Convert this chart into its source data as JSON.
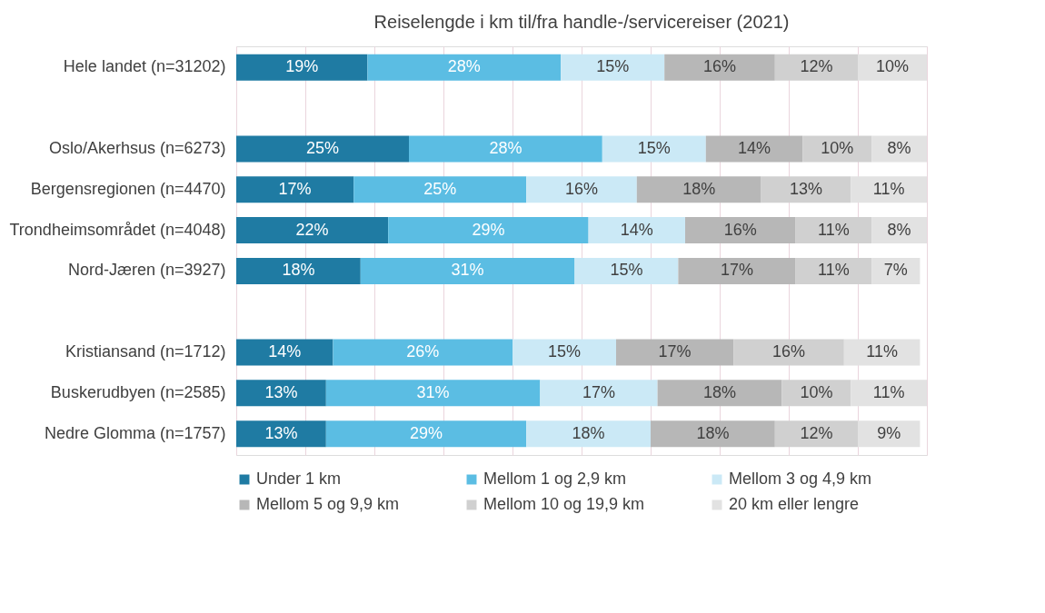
{
  "chart_data": {
    "type": "bar",
    "orientation": "horizontal",
    "stacked": true,
    "title": "Reiselengde i km til/fra handle-/servicereiser (2021)",
    "categories": [
      "Hele landet (n=31202)",
      null,
      "Oslo/Akerhsus (n=6273)",
      "Bergensregionen (n=4470)",
      "Trondheimsområdet (n=4048)",
      "Nord-Jæren (n=3927)",
      null,
      "Kristiansand (n=1712)",
      "Buskerudbyen (n=2585)",
      "Nedre Glomma (n=1757)"
    ],
    "grid": "x",
    "legend": "bottom",
    "tick_labels": "y",
    "series": [
      {
        "name": "Under 1 km",
        "color": "#1f7ba3",
        "values": [
          19,
          null,
          25,
          17,
          22,
          18,
          null,
          14,
          13,
          13
        ],
        "value_labels": [
          "19%",
          null,
          "25%",
          "17%",
          "22%",
          "18%",
          null,
          "14%",
          "13%",
          "13%"
        ]
      },
      {
        "name": "Mellom 1 og 2,9 km",
        "color": "#5bbde3",
        "values": [
          28,
          null,
          28,
          25,
          29,
          31,
          null,
          26,
          31,
          29
        ],
        "value_labels": [
          "28%",
          null,
          "28%",
          "25%",
          "29%",
          "31%",
          null,
          "26%",
          "31%",
          "29%"
        ]
      },
      {
        "name": "Mellom 3 og 4,9 km",
        "color": "#cbe9f6",
        "values": [
          15,
          null,
          15,
          16,
          14,
          15,
          null,
          15,
          17,
          18
        ],
        "value_labels": [
          "15%",
          null,
          "15%",
          "16%",
          "14%",
          "15%",
          null,
          "15%",
          "17%",
          "18%"
        ]
      },
      {
        "name": "Mellom 5 og 9,9 km",
        "color": "#b7b7b7",
        "values": [
          16,
          null,
          14,
          18,
          16,
          17,
          null,
          17,
          18,
          18
        ],
        "value_labels": [
          "16%",
          null,
          "14%",
          "18%",
          "16%",
          "17%",
          null,
          "17%",
          "18%",
          "18%"
        ]
      },
      {
        "name": "Mellom 10 og 19,9 km",
        "color": "#d0d0d0",
        "values": [
          12,
          null,
          10,
          13,
          11,
          11,
          null,
          16,
          10,
          12
        ],
        "value_labels": [
          "12%",
          null,
          "10%",
          "13%",
          "11%",
          "11%",
          null,
          "16%",
          "10%",
          "12%"
        ]
      },
      {
        "name": "20 km eller lengre",
        "color": "#e2e2e2",
        "values": [
          10,
          null,
          8,
          11,
          8,
          7,
          null,
          11,
          11,
          9
        ],
        "value_labels": [
          "10%",
          null,
          "8%",
          "11%",
          "8%",
          "7%",
          null,
          "11%",
          "11%",
          "9%"
        ]
      }
    ]
  }
}
